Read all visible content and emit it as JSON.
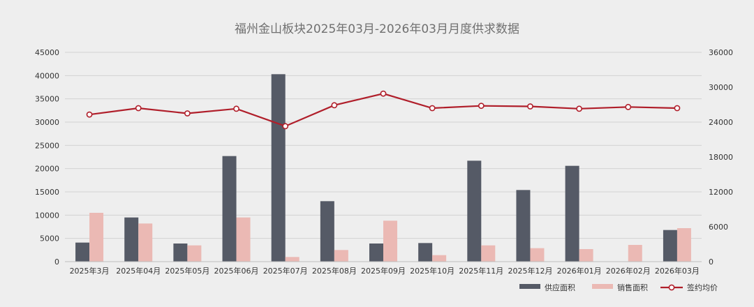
{
  "chart_data": {
    "type": "bar",
    "title": "福州金山板块2025年03月-2026年03月月度供求数据",
    "categories": [
      "2025年3月",
      "2025年04月",
      "2025年05月",
      "2025年06月",
      "2025年07月",
      "2025年08月",
      "2025年09月",
      "2025年10月",
      "2025年11月",
      "2025年12月",
      "2026年01月",
      "2026年02月",
      "2026年03月"
    ],
    "series": [
      {
        "name": "供应面积",
        "kind": "bar",
        "axis": "left",
        "color": "#555a66",
        "values": [
          4100,
          9500,
          3900,
          22700,
          40300,
          13000,
          3900,
          4000,
          21700,
          15400,
          20600,
          0,
          6800
        ]
      },
      {
        "name": "销售面积",
        "kind": "bar",
        "axis": "left",
        "color": "#ebb9b4",
        "values": [
          10500,
          8200,
          3500,
          9500,
          1000,
          2500,
          8800,
          1400,
          3500,
          2900,
          2700,
          3600,
          7200
        ]
      },
      {
        "name": "签约均价",
        "kind": "line",
        "axis": "right",
        "color": "#b01e2a",
        "values": [
          25300,
          26400,
          25500,
          26300,
          23300,
          26900,
          28900,
          26400,
          26800,
          26700,
          26300,
          26600,
          26400
        ]
      }
    ],
    "y_left": {
      "min": 0,
      "max": 45000,
      "ticks": [
        0,
        5000,
        10000,
        15000,
        20000,
        25000,
        30000,
        35000,
        40000,
        45000
      ]
    },
    "y_right": {
      "min": 0,
      "max": 36000,
      "ticks": [
        0,
        6000,
        12000,
        18000,
        24000,
        30000,
        36000
      ]
    },
    "grid": true,
    "legend_position": "bottom-right"
  }
}
